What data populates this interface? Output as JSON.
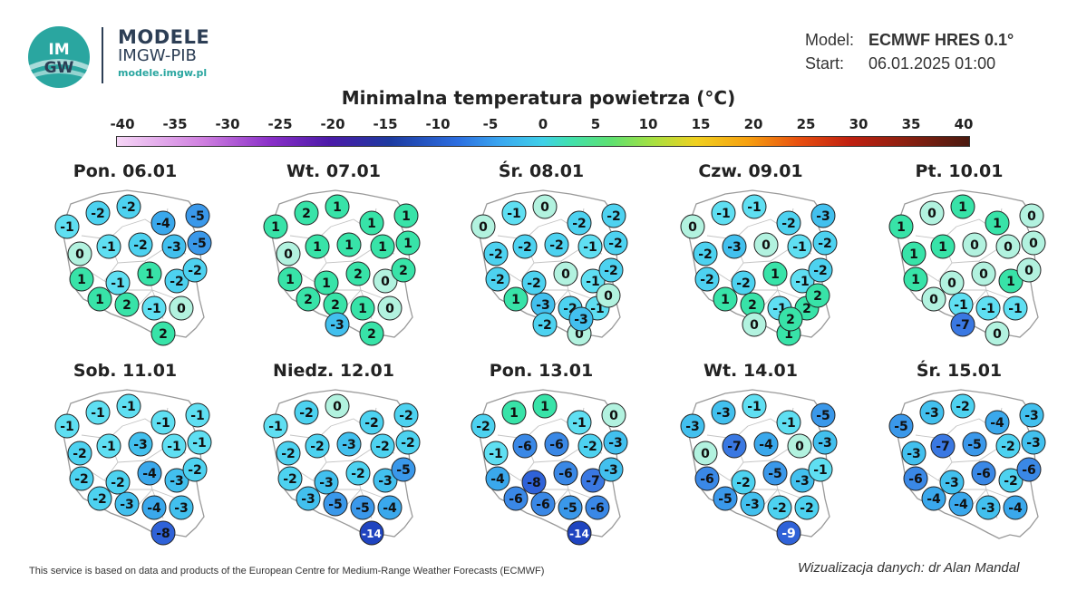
{
  "brand": {
    "name": "MODELE",
    "org": "IMGW-PIB",
    "url": "modele.imgw.pl",
    "logo_text": "IMGW"
  },
  "model": {
    "model_label": "Model:",
    "model_value": "ECMWF HRES 0.1°",
    "start_label": "Start:",
    "start_value": "06.01.2025 01:00"
  },
  "title": "Minimalna temperatura powietrza (°C)",
  "scale_ticks": [
    "-40",
    "-35",
    "-30",
    "-25",
    "-20",
    "-15",
    "-10",
    "-5",
    "0",
    "5",
    "10",
    "15",
    "20",
    "25",
    "30",
    "35",
    "40"
  ],
  "scale_range": [
    -40,
    40
  ],
  "days": [
    {
      "label": "Pon. 06.01",
      "values": [
        -2,
        -2,
        -4,
        -5,
        -1,
        -5,
        0,
        -1,
        -2,
        -3,
        1,
        -1,
        1,
        -2,
        -2,
        1,
        2,
        -1,
        0,
        2
      ]
    },
    {
      "label": "Wt. 07.01",
      "values": [
        2,
        1,
        1,
        1,
        1,
        1,
        0,
        1,
        1,
        1,
        1,
        1,
        2,
        0,
        2,
        2,
        2,
        1,
        0,
        2,
        -3
      ]
    },
    {
      "label": "Śr. 08.01",
      "values": [
        -1,
        0,
        -2,
        -2,
        0,
        -2,
        -2,
        -2,
        -2,
        -1,
        -2,
        -2,
        0,
        -1,
        -2,
        1,
        -3,
        -2,
        -1,
        0,
        -2,
        0,
        -3
      ]
    },
    {
      "label": "Czw. 09.01",
      "values": [
        -1,
        -1,
        -2,
        -3,
        0,
        -2,
        -2,
        -3,
        0,
        -1,
        -2,
        -2,
        1,
        -1,
        -2,
        1,
        2,
        -1,
        2,
        1,
        0,
        2,
        2
      ]
    },
    {
      "label": "Pt. 10.01",
      "values": [
        0,
        1,
        1,
        0,
        1,
        0,
        1,
        1,
        0,
        0,
        1,
        0,
        0,
        1,
        0,
        0,
        -1,
        -1,
        -1,
        0,
        -7
      ]
    },
    {
      "label": "Sob. 11.01",
      "values": [
        -1,
        -1,
        -1,
        -1,
        -1,
        -1,
        -2,
        -1,
        -3,
        -1,
        -2,
        -2,
        -4,
        -3,
        -2,
        -2,
        -3,
        -4,
        -3,
        -8
      ]
    },
    {
      "label": "Niedz. 12.01",
      "values": [
        -2,
        0,
        -2,
        -2,
        -1,
        -2,
        -2,
        -2,
        -3,
        -2,
        -2,
        -3,
        -2,
        -3,
        -5,
        -3,
        -5,
        -5,
        -4,
        -14
      ]
    },
    {
      "label": "Pon. 13.01",
      "values": [
        1,
        1,
        -1,
        0,
        -2,
        -3,
        -1,
        -6,
        -6,
        -2,
        -4,
        -8,
        -6,
        -7,
        -3,
        -6,
        -6,
        -5,
        -6,
        -14
      ]
    },
    {
      "label": "Wt. 14.01",
      "values": [
        -3,
        -1,
        -1,
        -5,
        -3,
        -3,
        0,
        -7,
        -4,
        0,
        -6,
        -2,
        -5,
        -3,
        -1,
        -5,
        -3,
        -2,
        -2,
        -9
      ]
    },
    {
      "label": "Śr. 15.01",
      "values": [
        -3,
        -2,
        -4,
        -3,
        -5,
        -3,
        -3,
        -7,
        -5,
        -2,
        -6,
        -3,
        -6,
        -2,
        -6,
        -4,
        -4,
        -3,
        -4
      ]
    }
  ],
  "footer": "This service is based on data and products of the European Centre for Medium-Range Weather Forecasts (ECMWF)",
  "credit": "Wizualizacja danych: dr Alan Mandal"
}
